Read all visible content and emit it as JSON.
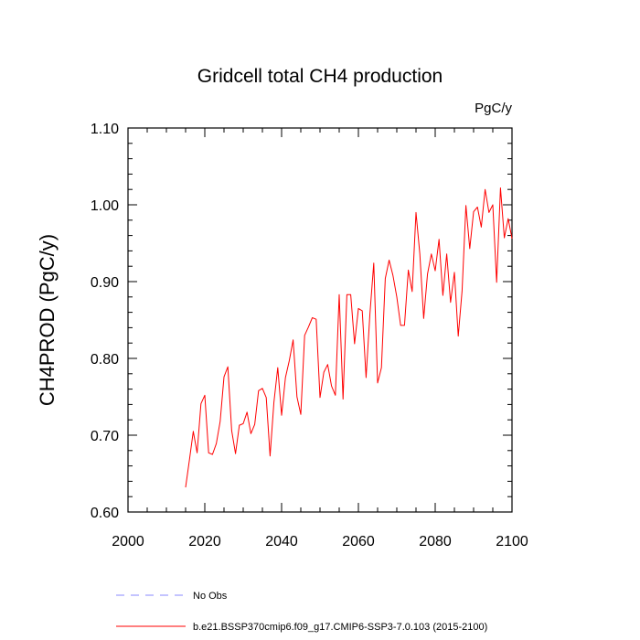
{
  "chart_data": {
    "type": "line",
    "title": "Gridcell total CH4 production",
    "units": "PgC/y",
    "ylabel": "CH4PROD  (PgC/y)",
    "xlabel": "",
    "xlim": [
      2000,
      2100
    ],
    "ylim": [
      0.6,
      1.1
    ],
    "xticks": [
      2000,
      2020,
      2040,
      2060,
      2080,
      2100
    ],
    "xtick_labels": [
      "2000",
      "2020",
      "2040",
      "2060",
      "2080",
      "2100"
    ],
    "yticks": [
      0.6,
      0.7,
      0.8,
      0.9,
      1.0,
      1.1
    ],
    "ytick_labels": [
      "0.60",
      "0.70",
      "0.80",
      "0.90",
      "1.00",
      "1.10"
    ],
    "grid": false,
    "legend_position": "bottom",
    "series": [
      {
        "name": "b.e21.BSSP370cmip6.f09_g17.CMIP6-SSP3-7.0.103 (2015-2100)",
        "color": "#ff0000",
        "style": "solid",
        "x": [
          2015,
          2016,
          2017,
          2018,
          2019,
          2020,
          2021,
          2022,
          2023,
          2024,
          2025,
          2026,
          2027,
          2028,
          2029,
          2030,
          2031,
          2032,
          2033,
          2034,
          2035,
          2036,
          2037,
          2038,
          2039,
          2040,
          2041,
          2042,
          2043,
          2044,
          2045,
          2046,
          2047,
          2048,
          2049,
          2050,
          2051,
          2052,
          2053,
          2054,
          2055,
          2056,
          2057,
          2058,
          2059,
          2060,
          2061,
          2062,
          2063,
          2064,
          2065,
          2066,
          2067,
          2068,
          2069,
          2070,
          2071,
          2072,
          2073,
          2074,
          2075,
          2076,
          2077,
          2078,
          2079,
          2080,
          2081,
          2082,
          2083,
          2084,
          2085,
          2086,
          2087,
          2088,
          2089,
          2090,
          2091,
          2092,
          2093,
          2094,
          2095,
          2096,
          2097,
          2098,
          2099,
          2100
        ],
        "y": [
          0.632,
          0.668,
          0.705,
          0.677,
          0.741,
          0.752,
          0.677,
          0.675,
          0.689,
          0.718,
          0.776,
          0.789,
          0.706,
          0.676,
          0.713,
          0.715,
          0.73,
          0.702,
          0.714,
          0.758,
          0.761,
          0.749,
          0.673,
          0.743,
          0.788,
          0.726,
          0.775,
          0.797,
          0.824,
          0.75,
          0.727,
          0.83,
          0.841,
          0.853,
          0.851,
          0.749,
          0.782,
          0.792,
          0.764,
          0.752,
          0.883,
          0.747,
          0.883,
          0.883,
          0.819,
          0.865,
          0.862,
          0.775,
          0.858,
          0.924,
          0.768,
          0.788,
          0.904,
          0.928,
          0.908,
          0.88,
          0.843,
          0.843,
          0.915,
          0.887,
          0.99,
          0.936,
          0.852,
          0.91,
          0.936,
          0.914,
          0.955,
          0.882,
          0.936,
          0.873,
          0.912,
          0.829,
          0.888,
          0.999,
          0.943,
          0.991,
          0.997,
          0.971,
          1.02,
          0.99,
          1.0,
          0.899,
          1.022,
          0.957,
          0.982,
          0.956
        ]
      }
    ],
    "legend": [
      {
        "label": "No Obs",
        "color": "#8888ff",
        "style": "dashed"
      },
      {
        "label": "b.e21.BSSP370cmip6.f09_g17.CMIP6-SSP3-7.0.103 (2015-2100)",
        "color": "#ff0000",
        "style": "solid"
      }
    ]
  }
}
